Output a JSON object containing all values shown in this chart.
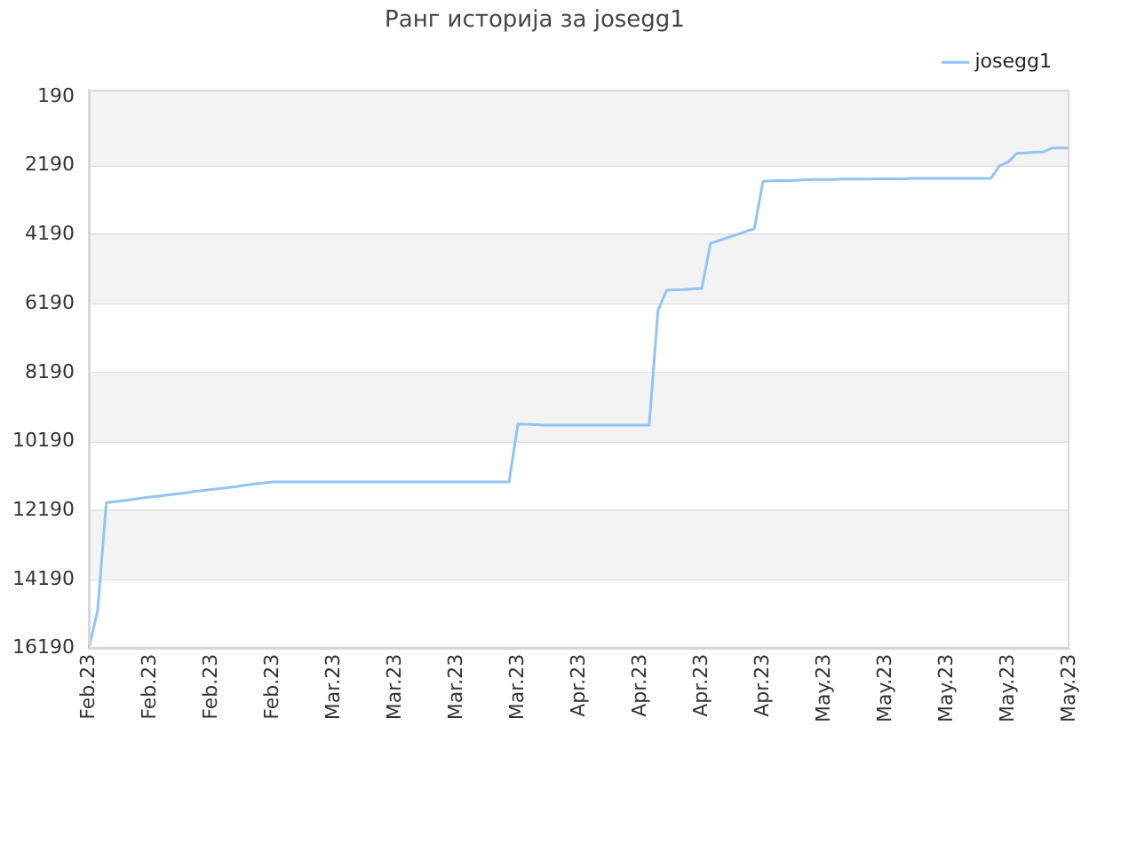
{
  "chart_data": {
    "type": "line",
    "title": "Ранг историја за josegg1",
    "categories": [
      "Feb.23",
      null,
      null,
      null,
      null,
      null,
      null,
      "Feb.23",
      null,
      null,
      null,
      null,
      null,
      null,
      "Feb.23",
      null,
      null,
      null,
      null,
      null,
      null,
      "Feb.23",
      null,
      null,
      null,
      null,
      null,
      null,
      "Mar.23",
      null,
      null,
      null,
      null,
      null,
      null,
      "Mar.23",
      null,
      null,
      null,
      null,
      null,
      null,
      "Mar.23",
      null,
      null,
      null,
      null,
      null,
      null,
      "Mar.23",
      null,
      null,
      null,
      null,
      null,
      null,
      "Apr.23",
      null,
      null,
      null,
      null,
      null,
      null,
      "Apr.23",
      null,
      null,
      null,
      null,
      null,
      null,
      "Apr.23",
      null,
      null,
      null,
      null,
      null,
      null,
      "Apr.23",
      null,
      null,
      null,
      null,
      null,
      null,
      "May.23",
      null,
      null,
      null,
      null,
      null,
      null,
      "May.23",
      null,
      null,
      null,
      null,
      null,
      null,
      "May.23",
      null,
      null,
      null,
      null,
      null,
      null,
      "May.23",
      null,
      null,
      null,
      null,
      null,
      null,
      "May.23"
    ],
    "series": [
      {
        "name": "josegg1",
        "color": "#90c4f5",
        "values": [
          16190,
          15100,
          11960,
          11930,
          11900,
          11870,
          11830,
          11800,
          11770,
          11740,
          11710,
          11680,
          11640,
          11610,
          11580,
          11550,
          11520,
          11490,
          11450,
          11420,
          11390,
          11360,
          11360,
          11360,
          11360,
          11360,
          11360,
          11360,
          11360,
          11360,
          11360,
          11360,
          11360,
          11360,
          11360,
          11360,
          11360,
          11360,
          11360,
          11360,
          11360,
          11360,
          11360,
          11360,
          11360,
          11360,
          11360,
          11360,
          11360,
          9680,
          9690,
          9700,
          9710,
          9710,
          9710,
          9710,
          9710,
          9710,
          9710,
          9710,
          9710,
          9710,
          9710,
          9710,
          9710,
          6390,
          5800,
          5790,
          5780,
          5760,
          5750,
          4440,
          4360,
          4270,
          4190,
          4100,
          4020,
          2640,
          2630,
          2620,
          2620,
          2610,
          2600,
          2590,
          2590,
          2590,
          2580,
          2580,
          2580,
          2580,
          2570,
          2570,
          2570,
          2570,
          2560,
          2560,
          2560,
          2560,
          2560,
          2560,
          2560,
          2560,
          2560,
          2560,
          2200,
          2080,
          1830,
          1820,
          1800,
          1790,
          1680,
          1680,
          1680
        ]
      }
    ],
    "ylim": [
      16190,
      -10
    ],
    "yticks": [
      190,
      2190,
      4190,
      6190,
      8190,
      10190,
      12190,
      14190,
      16190
    ],
    "bands": [
      {
        "axis": "y",
        "from": -10,
        "to": 2190,
        "color": "#f3f3f3"
      },
      {
        "axis": "y",
        "from": 4190,
        "to": 6190,
        "color": "#f3f3f3"
      },
      {
        "axis": "y",
        "from": 8190,
        "to": 10190,
        "color": "#f3f3f3"
      },
      {
        "axis": "y",
        "from": 12190,
        "to": 14190,
        "color": "#f3f3f3"
      }
    ],
    "grid": "y",
    "legend": "top right",
    "marker": "none",
    "line_style": "solid"
  }
}
